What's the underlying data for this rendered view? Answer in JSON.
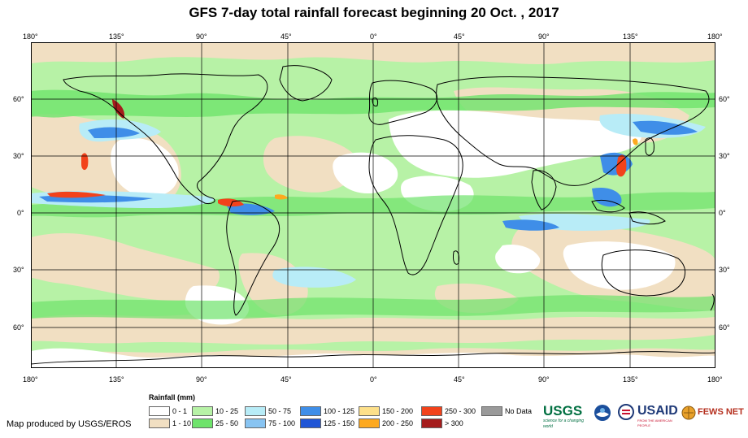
{
  "title": "GFS 7-day total rainfall forecast beginning 20 Oct. , 2017",
  "axes": {
    "lon_labels": [
      "180°",
      "135°",
      "90°",
      "45°",
      "0°",
      "45°",
      "90°",
      "135°",
      "180°"
    ],
    "lat_labels": [
      "60°",
      "30°",
      "0°",
      "30°",
      "60°"
    ]
  },
  "legend": {
    "title": "Rainfall (mm)",
    "items": [
      {
        "label": "0 - 1",
        "color": "#ffffff"
      },
      {
        "label": "1 - 10",
        "color": "#f1dfc2"
      },
      {
        "label": "10 - 25",
        "color": "#b7f2a6"
      },
      {
        "label": "25 - 50",
        "color": "#6ee36b"
      },
      {
        "label": "50 - 75",
        "color": "#b8ecf7"
      },
      {
        "label": "75 - 100",
        "color": "#88c4f2"
      },
      {
        "label": "100 - 125",
        "color": "#3f8ee8"
      },
      {
        "label": "125 - 150",
        "color": "#1f55d6"
      },
      {
        "label": "150 - 200",
        "color": "#fde08a"
      },
      {
        "label": "200 - 250",
        "color": "#fda91f"
      },
      {
        "label": "250 - 300",
        "color": "#f2421b"
      },
      {
        "label": "> 300",
        "color": "#a51c1c"
      },
      {
        "label": "No Data",
        "color": "#9a9a9a"
      }
    ]
  },
  "credit": "Map produced by USGS/EROS",
  "logos": {
    "usgs": "USGS",
    "usgs_tagline": "science for a changing world",
    "usaid": "USAID",
    "usaid_tagline": "FROM THE AMERICAN PEOPLE",
    "fewsnet": "FEWS NET"
  }
}
